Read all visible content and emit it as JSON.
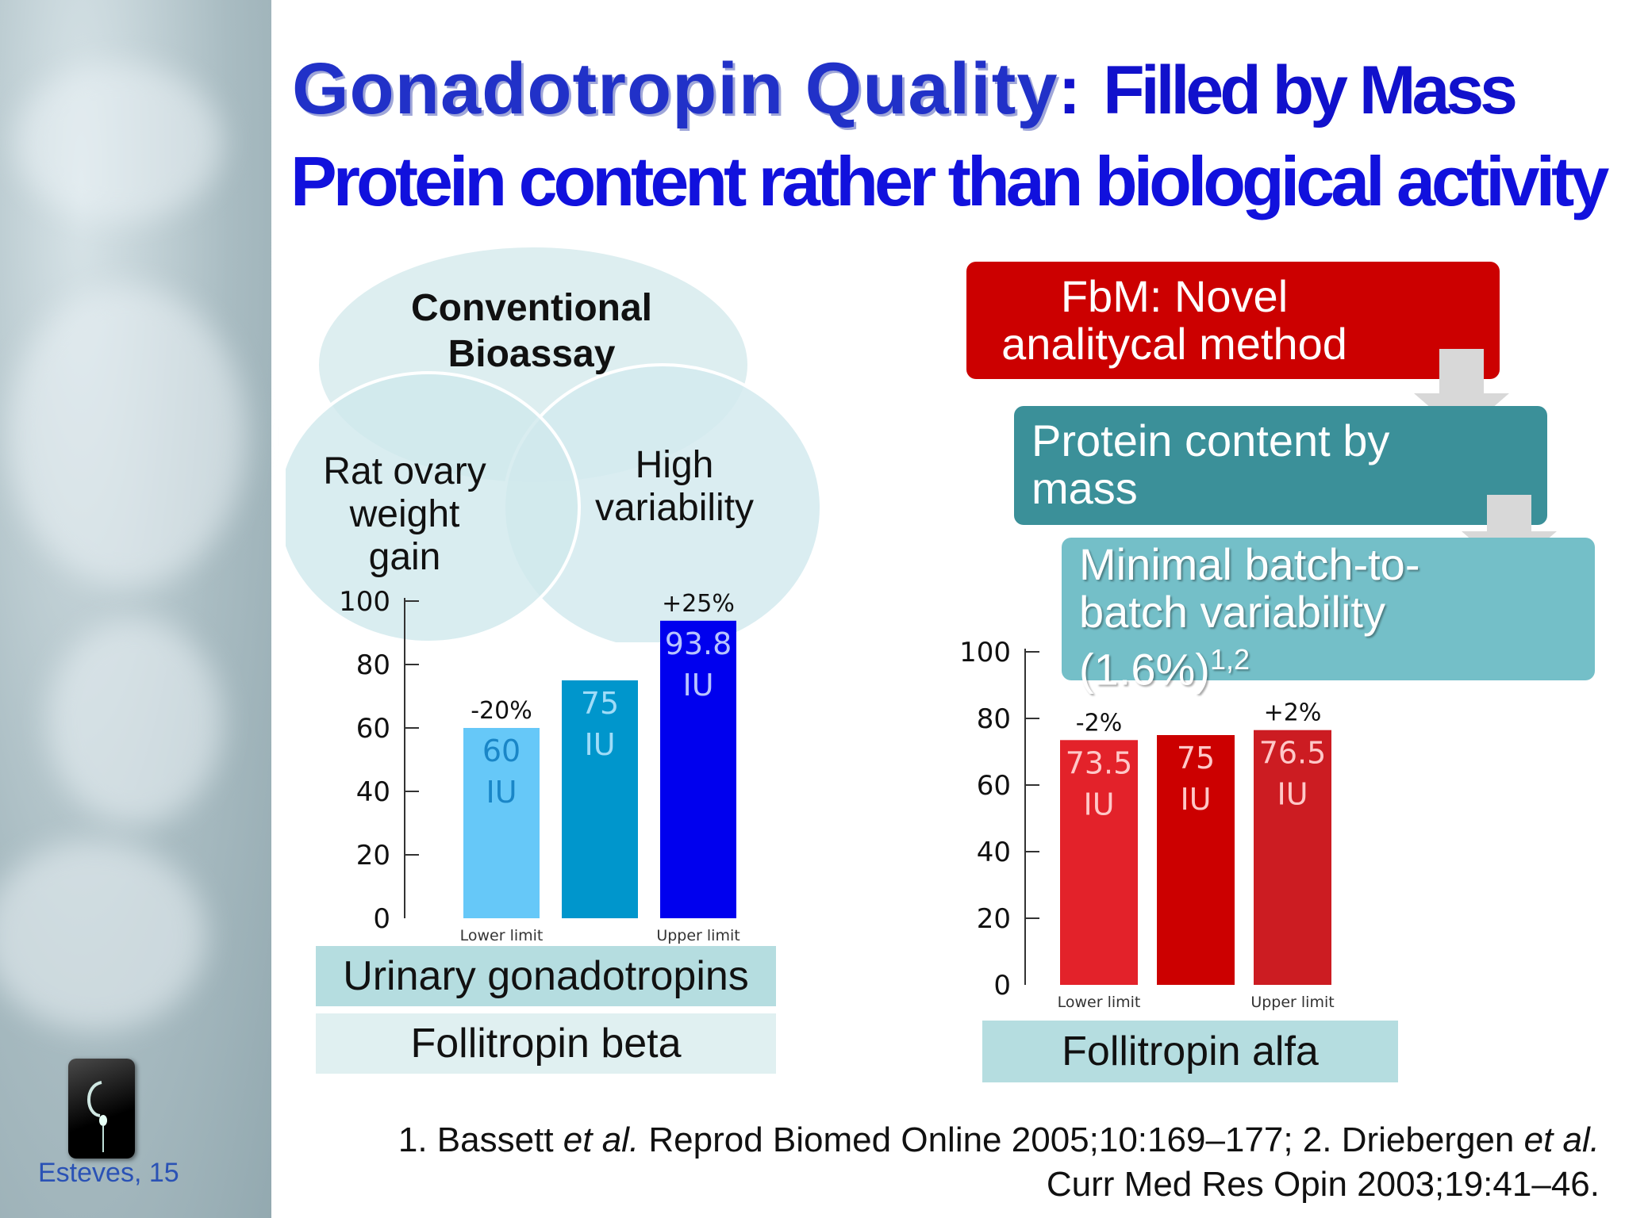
{
  "title": {
    "main": "Gonadotropin Quality",
    "colon": ":",
    "secondary": "Filled by Mass",
    "subtitle": "Protein content rather than biological activity"
  },
  "venn": {
    "top": "Conventional Bioassay",
    "left": "Rat ovary weight gain",
    "right": "High variability"
  },
  "flow": {
    "box1": "FbM: Novel analitycal method",
    "box2": "Protein content by mass",
    "box3_text": "Minimal batch-to-batch variability (1.6%)",
    "box3_sup": "1,2"
  },
  "labels": {
    "urinary": "Urinary gonadotropins",
    "follitropin_beta": "Follitropin beta",
    "follitropin_alfa": "Follitropin alfa"
  },
  "footer": {
    "line1_a": "1. Bassett ",
    "line1_b": "et al.",
    "line1_c": " Reprod Biomed Online 2005;10:169–177; 2. Driebergen ",
    "line1_d": "et al.",
    "line2": "Curr Med Res Opin 2003;19:41–46."
  },
  "author": "Esteves, 15",
  "chart_data": [
    {
      "type": "bar",
      "yticks": [
        "0",
        "20",
        "40",
        "60",
        "80",
        "100"
      ],
      "ylim": [
        0,
        100
      ],
      "categories": [
        "Lower limit",
        "",
        "Upper limit"
      ],
      "values": [
        60,
        75,
        93.8
      ],
      "bar_labels": [
        [
          "60",
          "IU"
        ],
        [
          "75",
          "IU"
        ],
        [
          "93.8",
          "IU"
        ]
      ],
      "annotations": [
        "-20%",
        "",
        "+25%"
      ],
      "colors": [
        "#66c8f8",
        "#0096cc",
        "#0000ee"
      ],
      "label_colors": [
        "#1a86c7",
        "#9fdcf8",
        "#b8c4ff"
      ]
    },
    {
      "type": "bar",
      "yticks": [
        "0",
        "20",
        "40",
        "60",
        "80",
        "100"
      ],
      "ylim": [
        0,
        100
      ],
      "categories": [
        "Lower limit",
        "",
        "Upper limit"
      ],
      "values": [
        73.5,
        75,
        76.5
      ],
      "bar_labels": [
        [
          "73.5",
          "IU"
        ],
        [
          "75",
          "IU"
        ],
        [
          "76.5",
          "IU"
        ]
      ],
      "annotations": [
        "-2%",
        "",
        "+2%"
      ],
      "colors": [
        "#e3222a",
        "#cc0000",
        "#cc1c22"
      ],
      "label_colors": [
        "#ffc8c8",
        "#ffc8c8",
        "#ffc8c8"
      ]
    }
  ]
}
